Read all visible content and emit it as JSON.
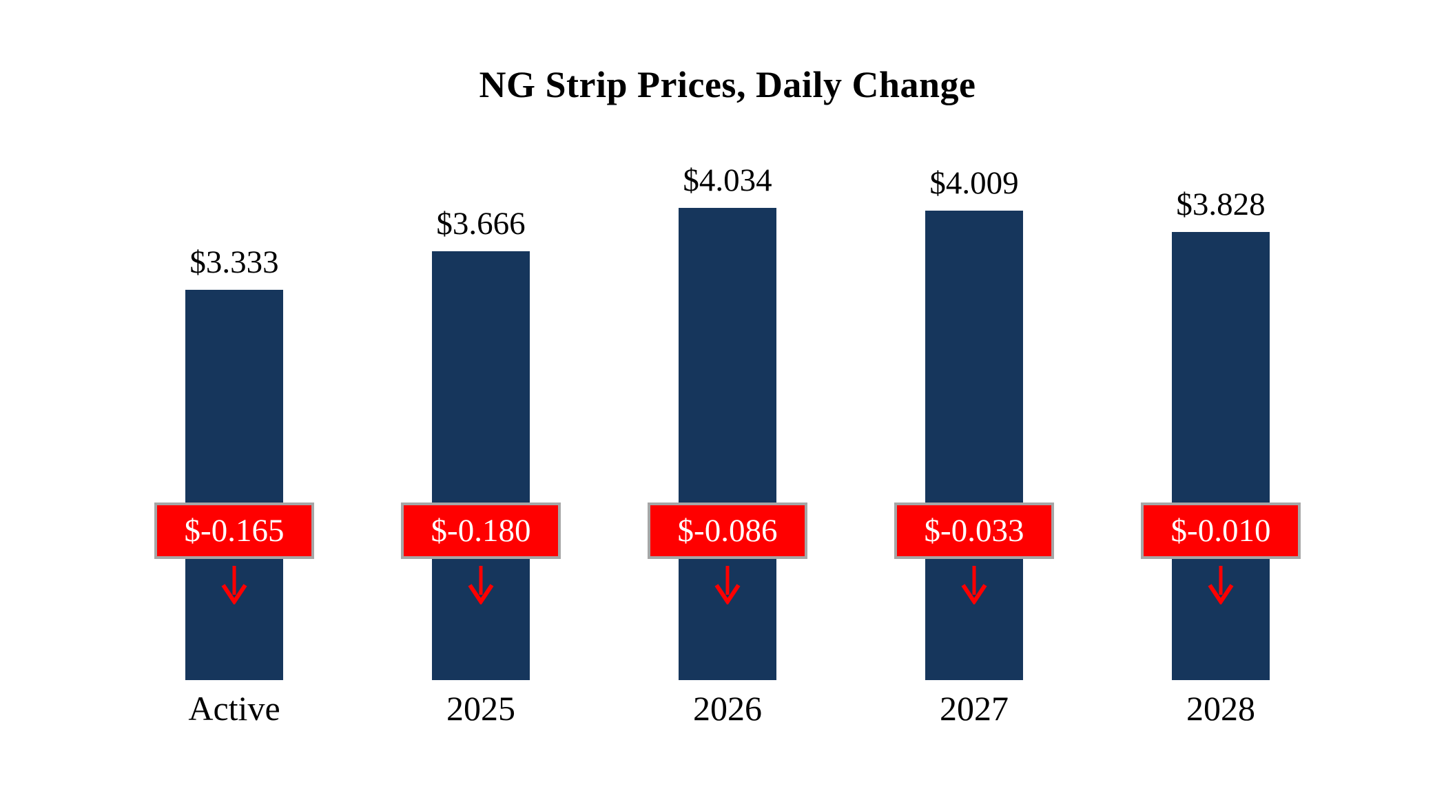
{
  "chart_data": {
    "type": "bar",
    "title": "NG Strip Prices, Daily Change",
    "categories": [
      "Active",
      "2025",
      "2026",
      "2027",
      "2028"
    ],
    "series": [
      {
        "name": "Strip Price",
        "values": [
          3.333,
          3.666,
          4.034,
          4.009,
          3.828
        ],
        "labels": [
          "$3.333",
          "$3.666",
          "$4.034",
          "$4.009",
          "$3.828"
        ]
      },
      {
        "name": "Daily Change",
        "values": [
          -0.165,
          -0.18,
          -0.086,
          -0.033,
          -0.01
        ],
        "labels": [
          "$-0.165",
          "$-0.180",
          "$-0.086",
          "$-0.033",
          "$-0.010"
        ]
      }
    ],
    "ylim": [
      0,
      4.2
    ],
    "grid": false,
    "legend": "none",
    "colors": {
      "bar": "#16365c",
      "change_bg": "#ff0000",
      "change_text": "#ffffff",
      "change_border": "#a6a6a6",
      "arrow": "#ff0000",
      "label_text": "#000000",
      "background": "#ffffff"
    }
  }
}
